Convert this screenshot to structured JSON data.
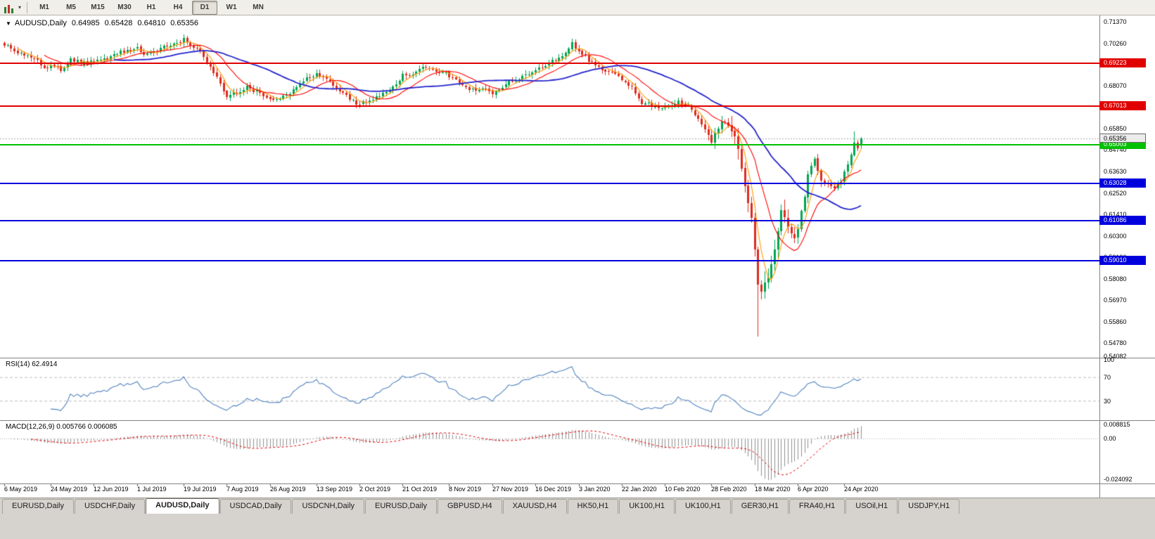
{
  "toolbar": {
    "chart_type_icon": "candlestick-chart-icon",
    "dropdown_icon": "chevron-down-icon",
    "timeframes": [
      "M1",
      "M5",
      "M15",
      "M30",
      "H1",
      "H4",
      "D1",
      "W1",
      "MN"
    ],
    "active_timeframe": "D1"
  },
  "chart": {
    "symbol_timeframe": "AUDUSD,Daily",
    "ohlc": {
      "open": "0.64985",
      "high": "0.65428",
      "low": "0.64810",
      "close": "0.65356"
    },
    "current_price": "0.65356",
    "price_axis_labels": [
      "0.71370",
      "0.70260",
      "0.69150",
      "0.68070",
      "0.66960",
      "0.65850",
      "0.64740",
      "0.63630",
      "0.62520",
      "0.61410",
      "0.60300",
      "0.59190",
      "0.58080",
      "0.56970",
      "0.55860",
      "0.54780",
      "0.54082"
    ]
  },
  "levels": [
    {
      "value": "0.69223",
      "color": "#e00000"
    },
    {
      "value": "0.67013",
      "color": "#e00000"
    },
    {
      "value": "0.65003",
      "color": "#00c000"
    },
    {
      "value": "0.63028",
      "color": "#0000dd"
    },
    {
      "value": "0.61086",
      "color": "#0000dd"
    },
    {
      "value": "0.59010",
      "color": "#0000dd"
    }
  ],
  "rsi": {
    "label": "RSI(14) 62.4914",
    "period": 14,
    "current": "62.4914",
    "axis_labels": [
      "100",
      "70",
      "30"
    ],
    "level_lines": [
      70,
      30
    ],
    "line_color": "#4f81bd"
  },
  "macd": {
    "label": "MACD(12,26,9) 0.005766 0.006085",
    "values": [
      "0.005766",
      "0.006085"
    ],
    "axis_labels": [
      "0.008815",
      "0.00",
      "-0.024092"
    ],
    "histogram_color": "#8f8f8f",
    "signal_color": "#e00000"
  },
  "date_axis": [
    {
      "label": "6 May 2019",
      "i": 0
    },
    {
      "label": "24 May 2019",
      "i": 14
    },
    {
      "label": "12 Jun 2019",
      "i": 27
    },
    {
      "label": "1 Jul 2019",
      "i": 40
    },
    {
      "label": "19 Jul 2019",
      "i": 54
    },
    {
      "label": "7 Aug 2019",
      "i": 67
    },
    {
      "label": "26 Aug 2019",
      "i": 80
    },
    {
      "label": "13 Sep 2019",
      "i": 94
    },
    {
      "label": "2 Oct 2019",
      "i": 107
    },
    {
      "label": "21 Oct 2019",
      "i": 120
    },
    {
      "label": "8 Nov 2019",
      "i": 134
    },
    {
      "label": "27 Nov 2019",
      "i": 147
    },
    {
      "label": "16 Dec 2019",
      "i": 160
    },
    {
      "label": "3 Jan 2020",
      "i": 173
    },
    {
      "label": "22 Jan 2020",
      "i": 186
    },
    {
      "label": "10 Feb 2020",
      "i": 199
    },
    {
      "label": "28 Feb 2020",
      "i": 213
    },
    {
      "label": "18 Mar 2020",
      "i": 226
    },
    {
      "label": "6 Apr 2020",
      "i": 239
    },
    {
      "label": "24 Apr 2020",
      "i": 253
    }
  ],
  "tabs": {
    "items": [
      "EURUSD,Daily",
      "USDCHF,Daily",
      "AUDUSD,Daily",
      "USDCAD,Daily",
      "USDCNH,Daily",
      "EURUSD,Daily",
      "GBPUSD,H4",
      "XAUUSD,H4",
      "HK50,H1",
      "UK100,H1",
      "UK100,H1",
      "GER30,H1",
      "FRA40,H1",
      "USOil,H1",
      "USDJPY,H1"
    ],
    "active_index": 2
  },
  "colors": {
    "candle_up": "#00a551",
    "candle_down": "#dd2c1f",
    "ma_fast": "#ff9900",
    "ma_mid": "#ff0000",
    "ma_slow": "#2323cc",
    "axis_text": "#000000",
    "pane_divider": "#828282",
    "current_price_line": "#a8a8a8",
    "rsi_level_dash": "#bbbbbb"
  },
  "chart_data": {
    "type": "candlestick",
    "symbol": "AUDUSD",
    "timeframe": "Daily",
    "candle_count": 259,
    "visible_price_range": [
      0.54,
      0.717
    ],
    "last_ohlc": [
      0.64985,
      0.65428,
      0.6481,
      0.65356
    ],
    "special_wicks": {
      "227": 0.551,
      "256": 0.657
    },
    "close_anchors": [
      [
        0,
        0.7015
      ],
      [
        3,
        0.699
      ],
      [
        6,
        0.696
      ],
      [
        10,
        0.693
      ],
      [
        13,
        0.69
      ],
      [
        14,
        0.692
      ],
      [
        17,
        0.689
      ],
      [
        20,
        0.6935
      ],
      [
        24,
        0.6922
      ],
      [
        28,
        0.693
      ],
      [
        32,
        0.6955
      ],
      [
        36,
        0.6985
      ],
      [
        40,
        0.6998
      ],
      [
        43,
        0.6965
      ],
      [
        47,
        0.7
      ],
      [
        52,
        0.703
      ],
      [
        54,
        0.7042
      ],
      [
        56,
        0.702
      ],
      [
        59,
        0.698
      ],
      [
        62,
        0.69
      ],
      [
        65,
        0.682
      ],
      [
        67,
        0.6758
      ],
      [
        70,
        0.6775
      ],
      [
        73,
        0.6795
      ],
      [
        76,
        0.678
      ],
      [
        79,
        0.675
      ],
      [
        82,
        0.6728
      ],
      [
        86,
        0.676
      ],
      [
        90,
        0.683
      ],
      [
        94,
        0.6868
      ],
      [
        97,
        0.6845
      ],
      [
        101,
        0.678
      ],
      [
        104,
        0.674
      ],
      [
        107,
        0.6708
      ],
      [
        109,
        0.6722
      ],
      [
        112,
        0.675
      ],
      [
        116,
        0.6795
      ],
      [
        120,
        0.6855
      ],
      [
        124,
        0.6885
      ],
      [
        127,
        0.6897
      ],
      [
        130,
        0.688
      ],
      [
        134,
        0.686
      ],
      [
        137,
        0.682
      ],
      [
        140,
        0.679
      ],
      [
        144,
        0.6783
      ],
      [
        147,
        0.6772
      ],
      [
        150,
        0.68
      ],
      [
        153,
        0.683
      ],
      [
        156,
        0.6858
      ],
      [
        160,
        0.6885
      ],
      [
        163,
        0.691
      ],
      [
        166,
        0.6945
      ],
      [
        170,
        0.7
      ],
      [
        171,
        0.7022
      ],
      [
        173,
        0.6985
      ],
      [
        176,
        0.694
      ],
      [
        179,
        0.6905
      ],
      [
        182,
        0.688
      ],
      [
        186,
        0.6848
      ],
      [
        189,
        0.68
      ],
      [
        192,
        0.672
      ],
      [
        195,
        0.6703
      ],
      [
        199,
        0.669
      ],
      [
        203,
        0.6725
      ],
      [
        207,
        0.6685
      ],
      [
        210,
        0.662
      ],
      [
        213,
        0.6515
      ],
      [
        216,
        0.6625
      ],
      [
        219,
        0.6578
      ],
      [
        221,
        0.649
      ],
      [
        223,
        0.629
      ],
      [
        225,
        0.612
      ],
      [
        227,
        0.5775
      ],
      [
        228,
        0.5742
      ],
      [
        230,
        0.5825
      ],
      [
        232,
        0.596
      ],
      [
        234,
        0.6165
      ],
      [
        236,
        0.607
      ],
      [
        238,
        0.603
      ],
      [
        239,
        0.6072
      ],
      [
        241,
        0.6235
      ],
      [
        242,
        0.634
      ],
      [
        244,
        0.643
      ],
      [
        246,
        0.632
      ],
      [
        248,
        0.63
      ],
      [
        250,
        0.6268
      ],
      [
        252,
        0.632
      ],
      [
        253,
        0.6365
      ],
      [
        255,
        0.645
      ],
      [
        256,
        0.651
      ],
      [
        257,
        0.6495
      ],
      [
        258,
        0.65356
      ]
    ],
    "moving_averages": [
      {
        "period": 5,
        "color": "#ff9900"
      },
      {
        "period": 13,
        "color": "#ff0000"
      },
      {
        "period": 34,
        "color": "#2323cc"
      }
    ],
    "indicators": [
      {
        "name": "RSI",
        "period": 14,
        "value": 62.4914
      },
      {
        "name": "MACD",
        "fast": 12,
        "slow": 26,
        "signal": 9,
        "values": [
          0.005766,
          0.006085
        ]
      }
    ]
  }
}
